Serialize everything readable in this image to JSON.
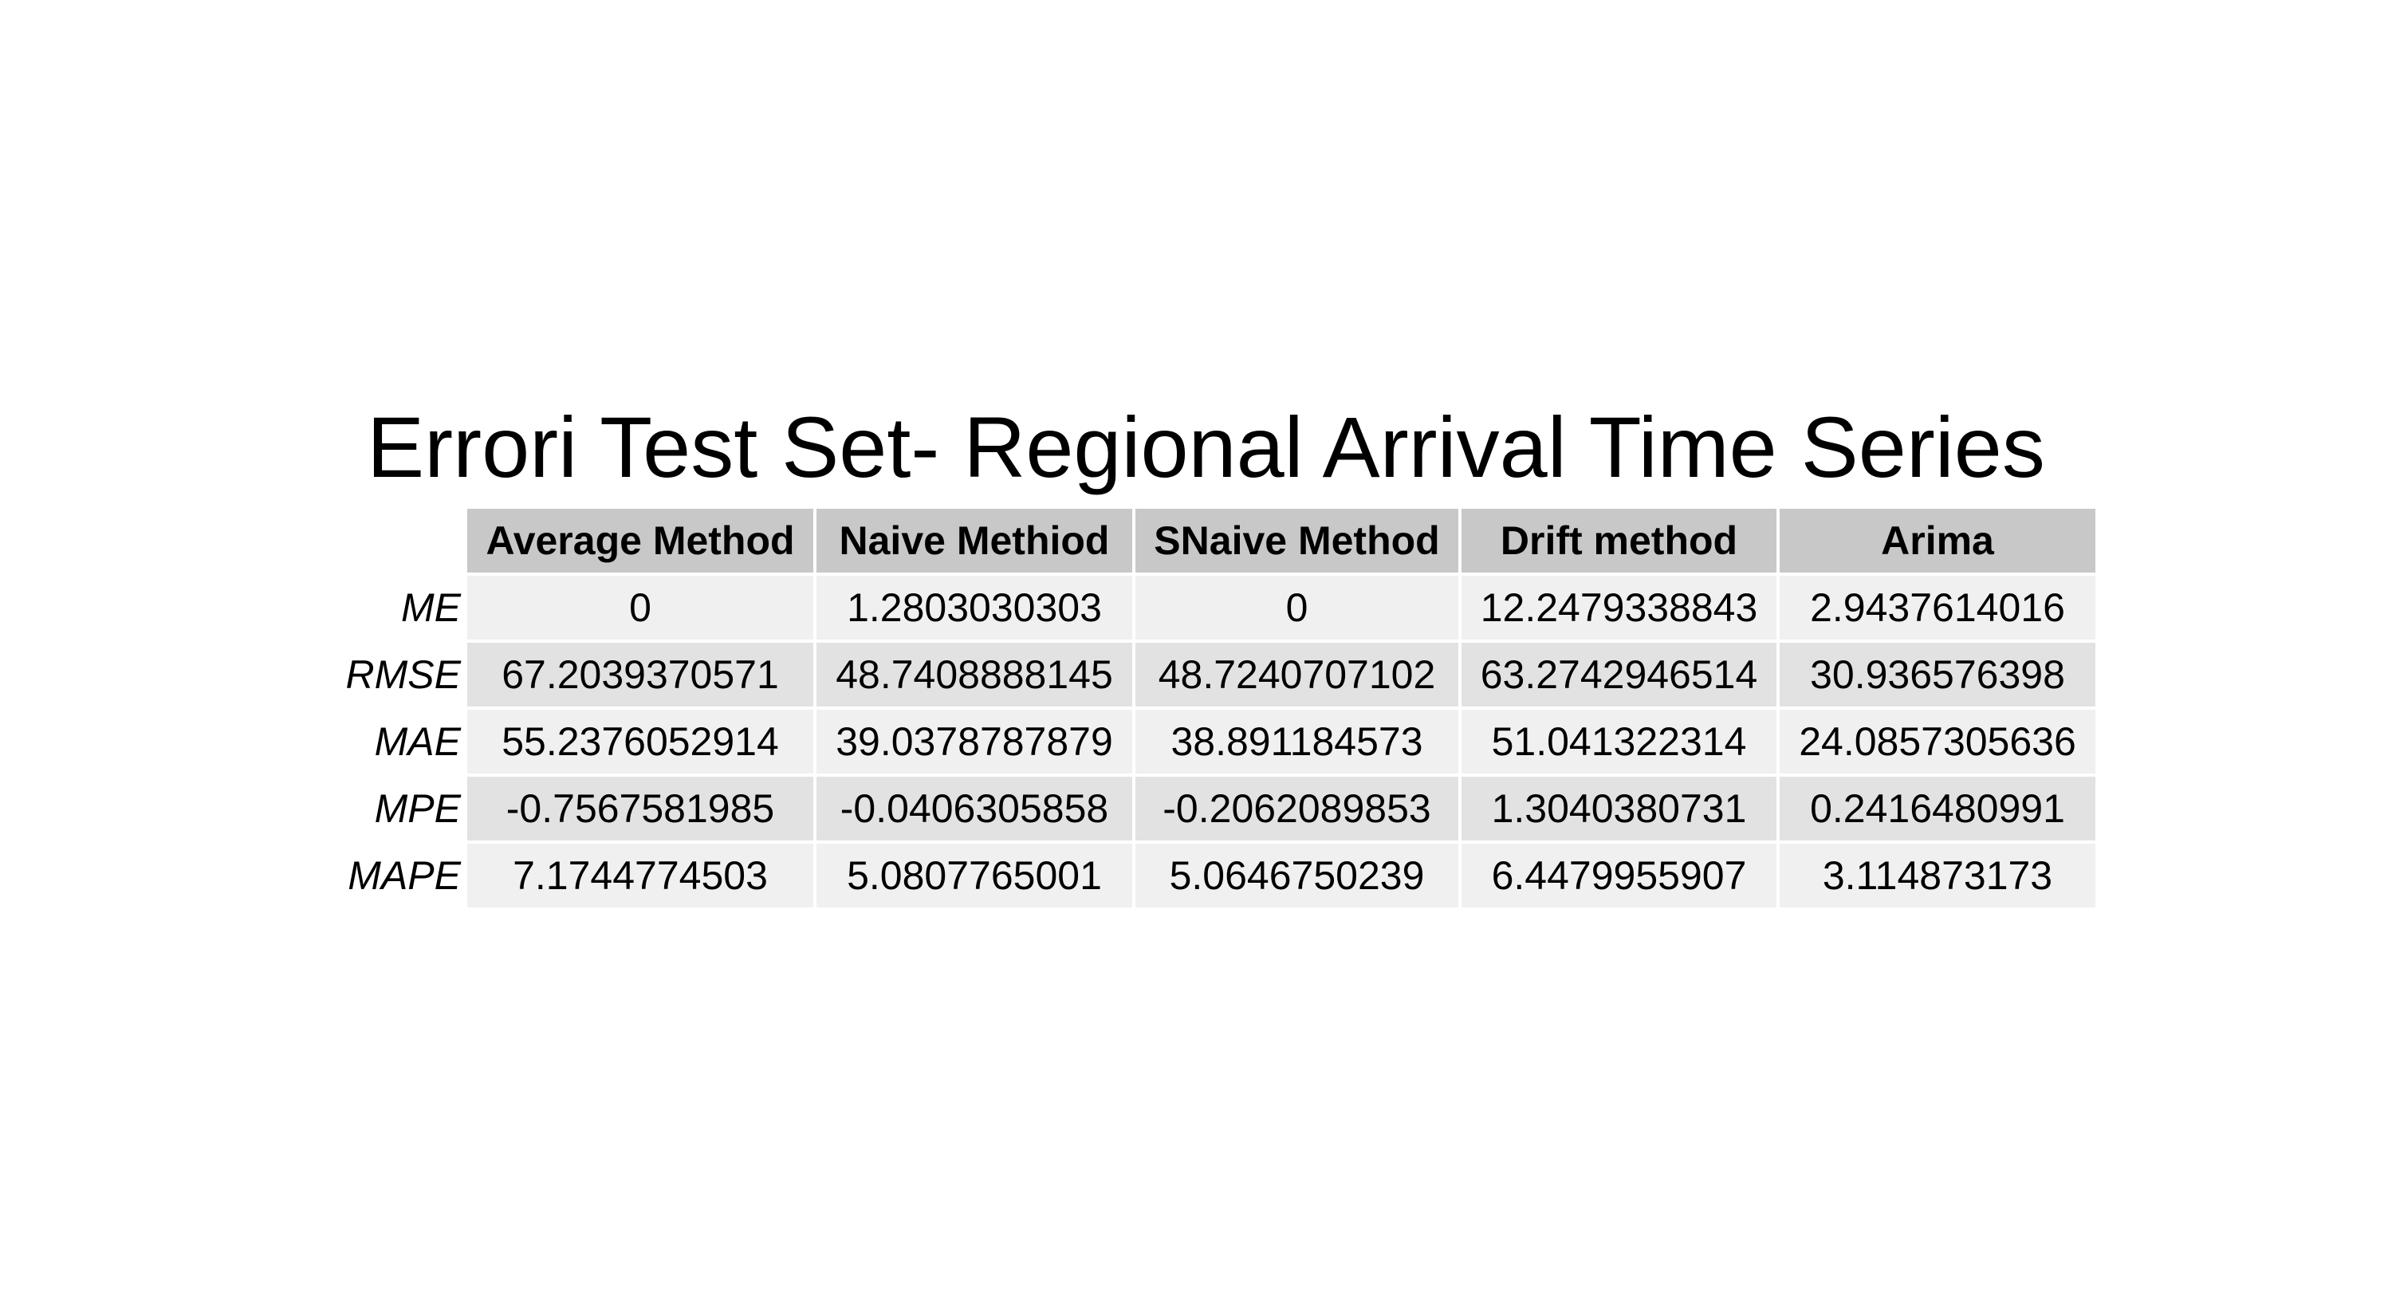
{
  "title": "Errori Test Set- Regional Arrival Time Series",
  "table": {
    "columns": [
      "Average Method",
      "Naive Methiod",
      "SNaive Method",
      "Drift method",
      "Arima"
    ],
    "rows": [
      {
        "label": "ME",
        "values": [
          "0",
          "1.2803030303",
          "0",
          "12.2479338843",
          "2.9437614016"
        ]
      },
      {
        "label": "RMSE",
        "values": [
          "67.2039370571",
          "48.7408888145",
          "48.7240707102",
          "63.2742946514",
          "30.936576398"
        ]
      },
      {
        "label": "MAE",
        "values": [
          "55.2376052914",
          "39.0378787879",
          "38.891184573",
          "51.041322314",
          "24.0857305636"
        ]
      },
      {
        "label": "MPE",
        "values": [
          "-0.7567581985",
          "-0.0406305858",
          "-0.2062089853",
          "1.3040380731",
          "0.2416480991"
        ]
      },
      {
        "label": "MAPE",
        "values": [
          "7.1744774503",
          "5.0807765001",
          "5.0646750239",
          "6.4479955907",
          "3.114873173"
        ]
      }
    ]
  }
}
